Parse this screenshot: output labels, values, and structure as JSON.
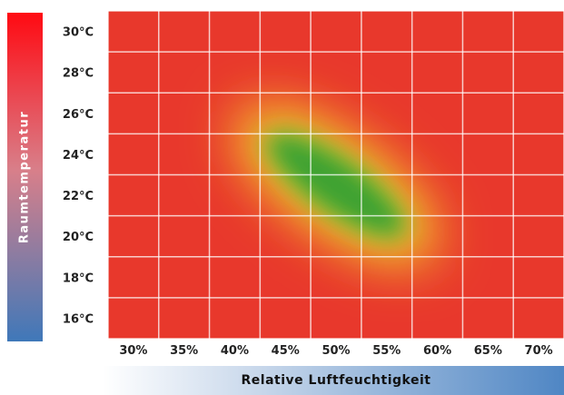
{
  "chart_data": {
    "type": "heatmap",
    "xlabel": "Relative Luftfeuchtigkeit",
    "ylabel": "Raumtemperatur",
    "x_ticks": [
      "30%",
      "35%",
      "40%",
      "45%",
      "50%",
      "55%",
      "60%",
      "65%",
      "70%"
    ],
    "y_ticks": [
      "30°C",
      "28°C",
      "26°C",
      "24°C",
      "22°C",
      "20°C",
      "18°C",
      "16°C"
    ],
    "x_values": [
      30,
      35,
      40,
      45,
      50,
      55,
      60,
      65,
      70
    ],
    "y_values": [
      30,
      28,
      26,
      24,
      22,
      20,
      18,
      16
    ],
    "comfort_zone": {
      "center_humidity": 50,
      "center_temperature": 22.5,
      "extends_humidity": [
        40,
        60
      ],
      "extends_temperature": [
        19.5,
        26.5
      ]
    },
    "grid": true,
    "colors": {
      "comfortable": "#3da233",
      "transition": "#f4ea2e",
      "uncomfortable": "#e8382c"
    },
    "scale_colors": {
      "temp_hot": "#ff0a12",
      "temp_cold": "#3f78b9",
      "humidity_low": "#ffffff",
      "humidity_high": "#4f86c4"
    }
  }
}
